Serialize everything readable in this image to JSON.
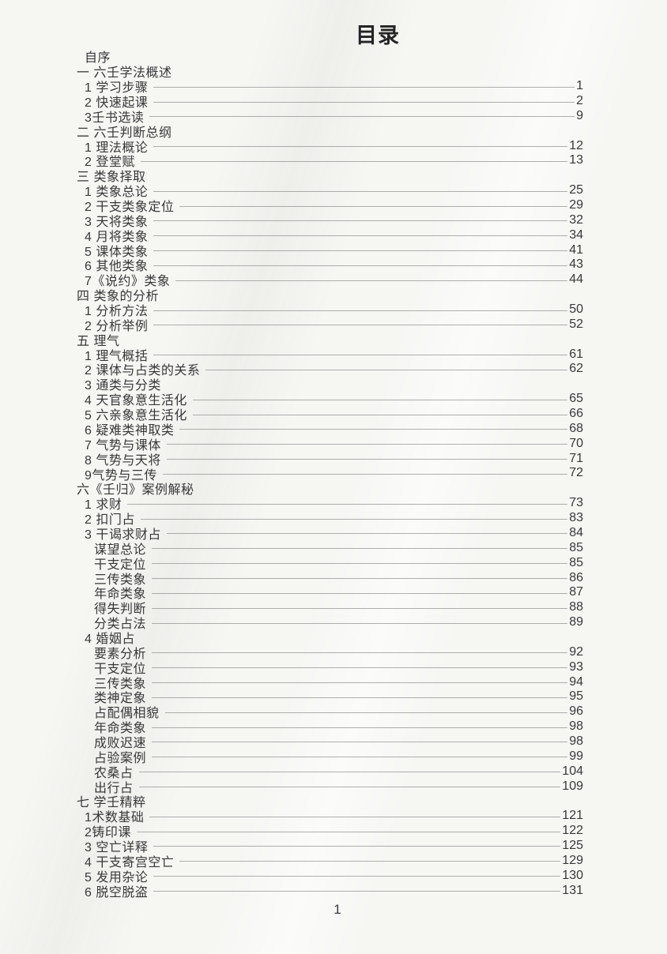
{
  "page": {
    "title": "目录",
    "footer_page_number": "1"
  },
  "colors": {
    "background": "#f6f6f3",
    "text": "#383838",
    "title_text": "#242424",
    "leader_line": "#8a8a8a"
  },
  "toc": {
    "entries": [
      {
        "label": "自序",
        "page": "",
        "level": 1,
        "leader": false
      },
      {
        "label": "一 六壬学法概述",
        "page": "",
        "level": 0,
        "leader": false
      },
      {
        "label": "1 学习步骤",
        "page": "1",
        "level": 1,
        "leader": true
      },
      {
        "label": "2 快速起课",
        "page": "2",
        "level": 1,
        "leader": true
      },
      {
        "label": "3壬书选读",
        "page": "9",
        "level": 1,
        "leader": true
      },
      {
        "label": "二 六壬判断总纲",
        "page": "",
        "level": 0,
        "leader": false
      },
      {
        "label": "1 理法概论",
        "page": "12",
        "level": 1,
        "leader": true
      },
      {
        "label": "2 登堂赋",
        "page": "13",
        "level": 1,
        "leader": true
      },
      {
        "label": "三 类象择取",
        "page": "",
        "level": 0,
        "leader": false
      },
      {
        "label": "1 类象总论",
        "page": "25",
        "level": 1,
        "leader": true
      },
      {
        "label": "2 干支类象定位",
        "page": "29",
        "level": 1,
        "leader": true
      },
      {
        "label": "3 天将类象",
        "page": "32",
        "level": 1,
        "leader": true
      },
      {
        "label": "4 月将类象",
        "page": "34",
        "level": 1,
        "leader": true
      },
      {
        "label": "5 课体类象",
        "page": "41",
        "level": 1,
        "leader": true
      },
      {
        "label": "6 其他类象",
        "page": "43",
        "level": 1,
        "leader": true
      },
      {
        "label": "7《说约》类象",
        "page": "44",
        "level": 1,
        "leader": true
      },
      {
        "label": "四 类象的分析",
        "page": "",
        "level": 0,
        "leader": false
      },
      {
        "label": "1 分析方法",
        "page": "50",
        "level": 1,
        "leader": true
      },
      {
        "label": "2 分析举例",
        "page": "52",
        "level": 1,
        "leader": true
      },
      {
        "label": "五 理气",
        "page": "",
        "level": 0,
        "leader": false
      },
      {
        "label": "1 理气概括",
        "page": "61",
        "level": 1,
        "leader": true
      },
      {
        "label": "2 课体与占类的关系",
        "page": "62",
        "level": 1,
        "leader": true
      },
      {
        "label": "3 通类与分类",
        "page": "",
        "level": 1,
        "leader": false
      },
      {
        "label": "4 天官象意生活化",
        "page": "65",
        "level": 1,
        "leader": true
      },
      {
        "label": "5 六亲象意生活化",
        "page": "66",
        "level": 1,
        "leader": true
      },
      {
        "label": "6 疑难类神取类",
        "page": "68",
        "level": 1,
        "leader": true
      },
      {
        "label": "7 气势与课体",
        "page": "70",
        "level": 1,
        "leader": true
      },
      {
        "label": "8 气势与天将",
        "page": "71",
        "level": 1,
        "leader": true
      },
      {
        "label": "9气势与三传",
        "page": "72",
        "level": 1,
        "leader": true
      },
      {
        "label": "六《壬归》案例解秘",
        "page": "",
        "level": 0,
        "leader": false
      },
      {
        "label": "1 求财",
        "page": "73",
        "level": 1,
        "leader": true
      },
      {
        "label": "2 扣门占",
        "page": "83",
        "level": 1,
        "leader": true
      },
      {
        "label": "3 干谒求财占",
        "page": "84",
        "level": 1,
        "leader": true
      },
      {
        "label": "谋望总论",
        "page": "85",
        "level": 2,
        "leader": true
      },
      {
        "label": "干支定位",
        "page": "85",
        "level": 2,
        "leader": true
      },
      {
        "label": "三传类象",
        "page": "86",
        "level": 2,
        "leader": true
      },
      {
        "label": "年命类象",
        "page": "87",
        "level": 2,
        "leader": true
      },
      {
        "label": "得失判断",
        "page": "88",
        "level": 2,
        "leader": true
      },
      {
        "label": "分类占法",
        "page": "89",
        "level": 2,
        "leader": true
      },
      {
        "label": "4 婚姻占",
        "page": "",
        "level": 1,
        "leader": false
      },
      {
        "label": "要素分析",
        "page": "92",
        "level": 2,
        "leader": true
      },
      {
        "label": "干支定位",
        "page": "93",
        "level": 2,
        "leader": true
      },
      {
        "label": "三传类象",
        "page": "94",
        "level": 2,
        "leader": true
      },
      {
        "label": "类神定象",
        "page": "95",
        "level": 2,
        "leader": true
      },
      {
        "label": "占配偶相貌",
        "page": "96",
        "level": 2,
        "leader": true
      },
      {
        "label": "年命类象",
        "page": "98",
        "level": 2,
        "leader": true
      },
      {
        "label": "成败迟速",
        "page": "98",
        "level": 2,
        "leader": true
      },
      {
        "label": "占验案例",
        "page": "99",
        "level": 2,
        "leader": true
      },
      {
        "label": "农桑占",
        "page": "104",
        "level": 2,
        "leader": true
      },
      {
        "label": "出行占",
        "page": "109",
        "level": 2,
        "leader": true
      },
      {
        "label": "七 学壬精粹",
        "page": "",
        "level": 0,
        "leader": false
      },
      {
        "label": "1术数基础",
        "page": "121",
        "level": 1,
        "leader": true
      },
      {
        "label": "2铸印课",
        "page": "122",
        "level": 1,
        "leader": true
      },
      {
        "label": "3 空亡详释",
        "page": "125",
        "level": 1,
        "leader": true
      },
      {
        "label": "4 干支寄宫空亡",
        "page": "129",
        "level": 1,
        "leader": true
      },
      {
        "label": "5 发用杂论",
        "page": "130",
        "level": 1,
        "leader": true
      },
      {
        "label": "6 脱空脱盗",
        "page": "131",
        "level": 1,
        "leader": true
      }
    ]
  }
}
